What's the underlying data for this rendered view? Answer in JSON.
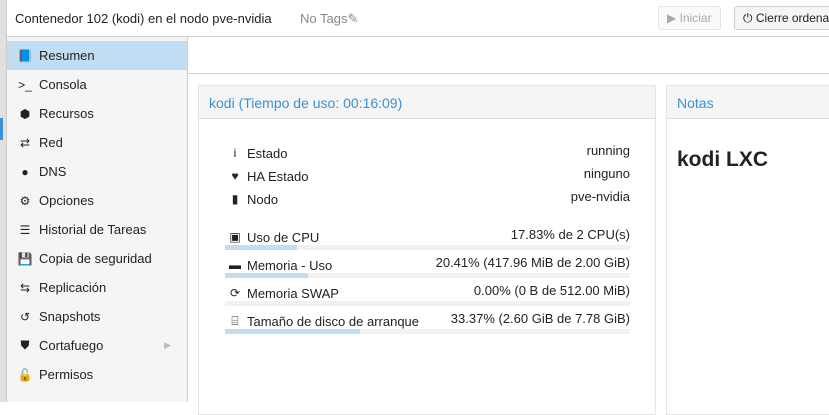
{
  "header": {
    "title": "Contenedor 102 (kodi) en el nodo pve-nvidia",
    "tags": "No Tags",
    "start_label": "Iniciar",
    "shutdown_label": "Cierre ordena"
  },
  "sidebar": {
    "items": [
      {
        "label": "Resumen",
        "icon": "book-icon",
        "glyph": "📘"
      },
      {
        "label": "Consola",
        "icon": "terminal-icon",
        "glyph": ">_"
      },
      {
        "label": "Recursos",
        "icon": "cube-icon",
        "glyph": "⬢"
      },
      {
        "label": "Red",
        "icon": "exchange-icon",
        "glyph": "⇄"
      },
      {
        "label": "DNS",
        "icon": "globe-icon",
        "glyph": "●"
      },
      {
        "label": "Opciones",
        "icon": "gear-icon",
        "glyph": "⚙"
      },
      {
        "label": "Historial de Tareas",
        "icon": "list-icon",
        "glyph": "☰"
      },
      {
        "label": "Copia de seguridad",
        "icon": "floppy-icon",
        "glyph": "💾"
      },
      {
        "label": "Replicación",
        "icon": "retweet-icon",
        "glyph": "⇆"
      },
      {
        "label": "Snapshots",
        "icon": "history-icon",
        "glyph": "↺"
      },
      {
        "label": "Cortafuego",
        "icon": "shield-icon",
        "glyph": "⛊"
      },
      {
        "label": "Permisos",
        "icon": "unlock-icon",
        "glyph": "🔓"
      }
    ]
  },
  "status": {
    "title": "kodi (Tiempo de uso: 00:16:09)",
    "rows": [
      {
        "label": "Estado",
        "value": "running",
        "icon": "info-icon",
        "glyph": "i"
      },
      {
        "label": "HA Estado",
        "value": "ninguno",
        "icon": "heartbeat-icon",
        "glyph": "♥"
      },
      {
        "label": "Nodo",
        "value": "pve-nvidia",
        "icon": "building-icon",
        "glyph": "▮"
      }
    ],
    "usage": [
      {
        "label": "Uso de CPU",
        "value": "17.83% de 2 CPU(s)",
        "percent": 17.83,
        "icon": "cpu-icon",
        "glyph": "▣"
      },
      {
        "label": "Memoria - Uso",
        "value": "20.41% (417.96 MiB de 2.00 GiB)",
        "percent": 20.41,
        "icon": "memory-icon",
        "glyph": "▬"
      },
      {
        "label": "Memoria SWAP",
        "value": "0.00% (0 B de 512.00 MiB)",
        "percent": 0,
        "icon": "refresh-icon",
        "glyph": "⟳"
      },
      {
        "label": "Tamaño de disco de arranque",
        "value": "33.37% (2.60 GiB de 7.78 GiB)",
        "percent": 33.37,
        "icon": "hdd-icon",
        "glyph": "⌸"
      }
    ]
  },
  "notes": {
    "title": "Notas",
    "content": "kodi LXC"
  },
  "colors": {
    "accent": "#3892d4",
    "selected": "#c2ddf2"
  }
}
